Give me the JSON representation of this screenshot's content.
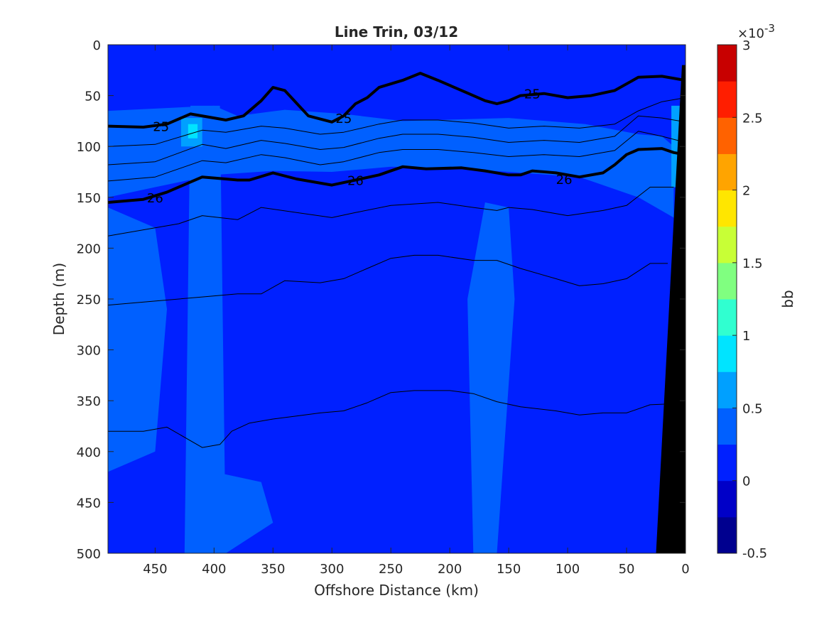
{
  "chart_data": {
    "type": "heatmap",
    "title": "Line Trin, 03/12",
    "xlabel": "Offshore Distance (km)",
    "ylabel": "Depth (m)",
    "xlim": [
      490,
      0
    ],
    "ylim": [
      0,
      500
    ],
    "x_reversed": true,
    "y_reversed": true,
    "x_ticks": [
      "450",
      "400",
      "350",
      "300",
      "250",
      "200",
      "150",
      "100",
      "50",
      "0"
    ],
    "y_ticks": [
      "0",
      "50",
      "100",
      "150",
      "200",
      "250",
      "300",
      "350",
      "400",
      "450",
      "500"
    ],
    "colorbar": {
      "label": "bb",
      "exponent_label": "×10",
      "exponent_power": "-3",
      "range": [
        -0.5,
        3
      ],
      "tick_labels": [
        "-0.5",
        "0",
        "0.5",
        "1",
        "1.5",
        "2",
        "2.5",
        "3"
      ],
      "colors": [
        "#00008f",
        "#0000c8",
        "#0020ff",
        "#0060ff",
        "#00a0ff",
        "#00e4ff",
        "#30ffd0",
        "#80ff80",
        "#c8ff36",
        "#ffe600",
        "#ffa400",
        "#ff6200",
        "#ff1e00",
        "#c80000"
      ]
    },
    "background_level_color": "#0020ff",
    "fill_regions": [
      {
        "color": "#0060ff",
        "points": [
          [
            490,
            65
          ],
          [
            400,
            60
          ],
          [
            380,
            70
          ],
          [
            340,
            64
          ],
          [
            290,
            68
          ],
          [
            240,
            75
          ],
          [
            150,
            72
          ],
          [
            85,
            78
          ],
          [
            40,
            88
          ],
          [
            20,
            90
          ],
          [
            10,
            100
          ],
          [
            10,
            170
          ],
          [
            40,
            150
          ],
          [
            90,
            130
          ],
          [
            150,
            125
          ],
          [
            200,
            121
          ],
          [
            250,
            120
          ],
          [
            300,
            125
          ],
          [
            350,
            124
          ],
          [
            400,
            128
          ],
          [
            450,
            140
          ],
          [
            490,
            150
          ]
        ]
      },
      {
        "color": "#0060ff",
        "points": [
          [
            420,
            60
          ],
          [
            395,
            60
          ],
          [
            390,
            500
          ],
          [
            425,
            500
          ]
        ]
      },
      {
        "color": "#0060ff",
        "points": [
          [
            170,
            155
          ],
          [
            150,
            160
          ],
          [
            145,
            250
          ],
          [
            160,
            500
          ],
          [
            180,
            500
          ],
          [
            185,
            250
          ]
        ]
      },
      {
        "color": "#0060ff",
        "points": [
          [
            490,
            160
          ],
          [
            450,
            180
          ],
          [
            440,
            260
          ],
          [
            450,
            400
          ],
          [
            490,
            420
          ]
        ]
      },
      {
        "color": "#0060ff",
        "points": [
          [
            400,
            420
          ],
          [
            360,
            430
          ],
          [
            350,
            470
          ],
          [
            390,
            500
          ],
          [
            410,
            500
          ]
        ]
      },
      {
        "color": "#00a0ff",
        "points": [
          [
            428,
            72
          ],
          [
            410,
            72
          ],
          [
            410,
            100
          ],
          [
            428,
            100
          ]
        ]
      },
      {
        "color": "#00e4ff",
        "points": [
          [
            422,
            78
          ],
          [
            414,
            78
          ],
          [
            414,
            92
          ],
          [
            422,
            92
          ]
        ]
      },
      {
        "color": "#00a0ff",
        "points": [
          [
            12,
            60
          ],
          [
            5,
            60
          ],
          [
            5,
            140
          ],
          [
            12,
            140
          ]
        ]
      }
    ],
    "isopycnals": [
      {
        "value": "25",
        "bold": true,
        "x": [
          490,
          460,
          440,
          420,
          400,
          390,
          375,
          360,
          350,
          340,
          320,
          300,
          290,
          280,
          270,
          260,
          240,
          225,
          210,
          190,
          170,
          160,
          150,
          140,
          120,
          100,
          80,
          60,
          40,
          20,
          0
        ],
        "y": [
          80,
          81,
          78,
          68,
          72,
          74,
          70,
          55,
          42,
          45,
          70,
          76,
          70,
          58,
          52,
          42,
          35,
          28,
          35,
          45,
          55,
          58,
          55,
          50,
          48,
          52,
          50,
          45,
          32,
          31,
          35
        ],
        "label_positions": [
          [
            445,
            80
          ],
          [
            290,
            72
          ],
          [
            130,
            48
          ]
        ]
      },
      {
        "value": "",
        "bold": false,
        "x": [
          490,
          450,
          410,
          390,
          360,
          340,
          310,
          290,
          260,
          240,
          210,
          180,
          150,
          120,
          90,
          60,
          40,
          20,
          0
        ],
        "y": [
          100,
          98,
          84,
          86,
          80,
          82,
          88,
          86,
          78,
          74,
          74,
          77,
          82,
          80,
          82,
          78,
          65,
          56,
          52
        ],
        "label_positions": []
      },
      {
        "value": "",
        "bold": false,
        "x": [
          490,
          450,
          410,
          390,
          360,
          340,
          310,
          290,
          260,
          240,
          210,
          180,
          150,
          120,
          90,
          60,
          40,
          20,
          0
        ],
        "y": [
          118,
          115,
          98,
          102,
          94,
          97,
          103,
          101,
          92,
          88,
          88,
          91,
          96,
          94,
          96,
          90,
          70,
          72,
          76
        ],
        "label_positions": []
      },
      {
        "value": "",
        "bold": false,
        "x": [
          490,
          450,
          410,
          390,
          360,
          340,
          310,
          290,
          260,
          240,
          210,
          180,
          150,
          120,
          90,
          60,
          40,
          20,
          0
        ],
        "y": [
          134,
          130,
          114,
          116,
          108,
          111,
          118,
          115,
          106,
          103,
          103,
          106,
          110,
          108,
          110,
          104,
          85,
          90,
          96
        ],
        "label_positions": []
      },
      {
        "value": "26",
        "bold": true,
        "x": [
          490,
          460,
          440,
          420,
          410,
          390,
          380,
          370,
          350,
          330,
          300,
          280,
          260,
          240,
          220,
          190,
          170,
          150,
          140,
          130,
          110,
          90,
          70,
          60,
          50,
          40,
          20,
          10,
          0
        ],
        "y": [
          155,
          152,
          145,
          135,
          130,
          132,
          133,
          133,
          126,
          132,
          138,
          133,
          128,
          120,
          122,
          121,
          124,
          128,
          128,
          124,
          126,
          130,
          126,
          118,
          108,
          103,
          102,
          106,
          108
        ],
        "label_positions": [
          [
            450,
            150
          ],
          [
            280,
            133
          ],
          [
            103,
            132
          ]
        ]
      },
      {
        "value": "",
        "bold": false,
        "x": [
          490,
          450,
          430,
          410,
          380,
          360,
          330,
          300,
          280,
          250,
          210,
          180,
          160,
          150,
          130,
          100,
          70,
          50,
          30,
          10
        ],
        "y": [
          188,
          180,
          176,
          168,
          172,
          160,
          165,
          170,
          165,
          158,
          155,
          160,
          163,
          160,
          162,
          168,
          163,
          158,
          140,
          140
        ],
        "label_positions": []
      },
      {
        "value": "",
        "bold": false,
        "x": [
          490,
          450,
          410,
          380,
          360,
          340,
          310,
          290,
          270,
          250,
          230,
          210,
          180,
          160,
          140,
          110,
          90,
          70,
          50,
          30,
          15
        ],
        "y": [
          256,
          252,
          248,
          245,
          245,
          232,
          234,
          230,
          220,
          210,
          207,
          207,
          212,
          212,
          220,
          230,
          237,
          235,
          230,
          215,
          215
        ],
        "label_positions": []
      },
      {
        "value": "",
        "bold": false,
        "x": [
          490,
          460,
          440,
          410,
          395,
          385,
          370,
          350,
          330,
          310,
          290,
          270,
          250,
          230,
          200,
          180,
          160,
          140,
          110,
          90,
          70,
          50,
          30,
          10
        ],
        "y": [
          380,
          380,
          376,
          396,
          393,
          380,
          372,
          368,
          365,
          362,
          360,
          352,
          342,
          340,
          340,
          343,
          351,
          356,
          360,
          364,
          362,
          362,
          354,
          353
        ],
        "label_positions": []
      }
    ],
    "seafloor": [
      [
        0,
        20
      ],
      [
        3,
        20
      ],
      [
        25,
        500
      ],
      [
        0,
        500
      ]
    ]
  }
}
